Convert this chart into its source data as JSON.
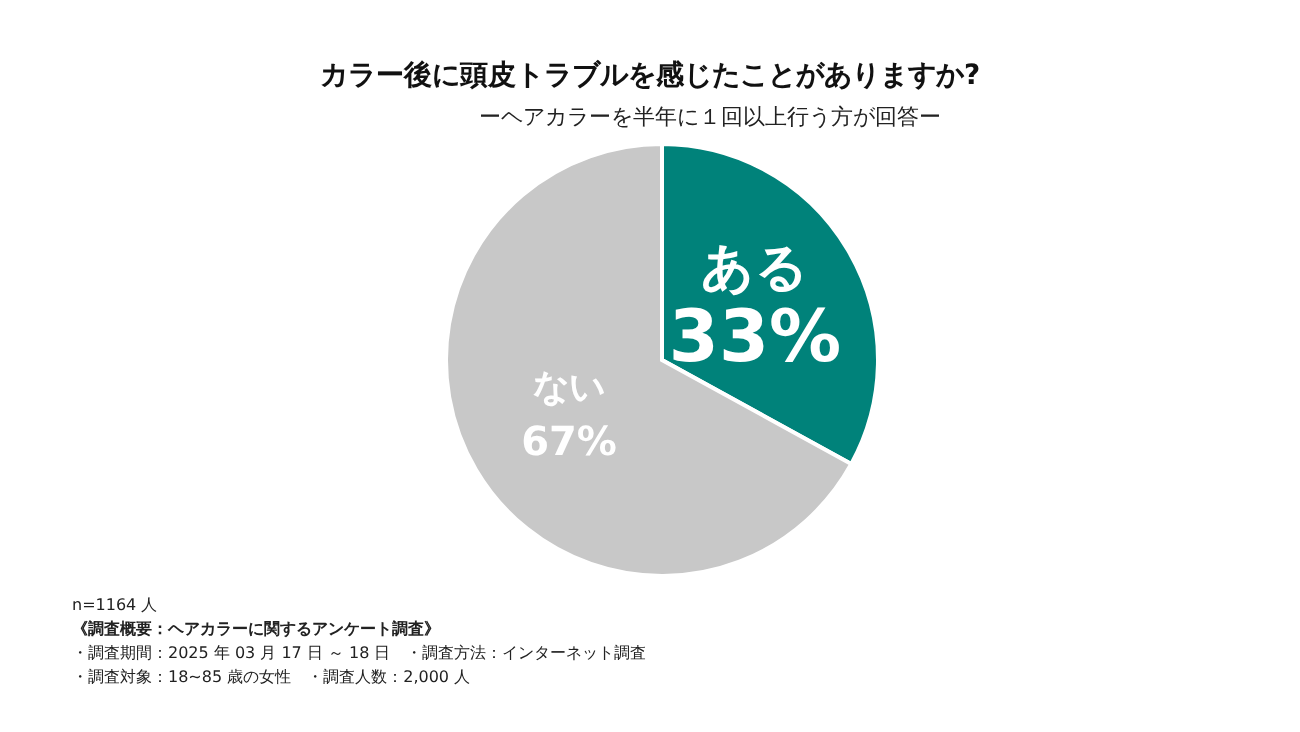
{
  "chart_data": {
    "type": "pie",
    "title": "カラー後に頭皮トラブルを感じたことがありますか?",
    "subtitle": "ーヘアカラーを半年に１回以上行う方が回答ー",
    "categories": [
      "ある",
      "ない"
    ],
    "values": [
      33,
      67
    ],
    "colors": [
      "#00827a",
      "#c8c8c8"
    ],
    "value_labels": [
      "33%",
      "67%"
    ],
    "annotations": [
      "n=1164 人",
      "《調査概要：ヘアカラーに関するアンケート調査》",
      "・調査期間：2025 年 03 月 17 日 ～ 18 日　・調査方法：インターネット調査",
      "・調査対象：18~85 歳の女性　・調査人数：2,000 人"
    ]
  }
}
